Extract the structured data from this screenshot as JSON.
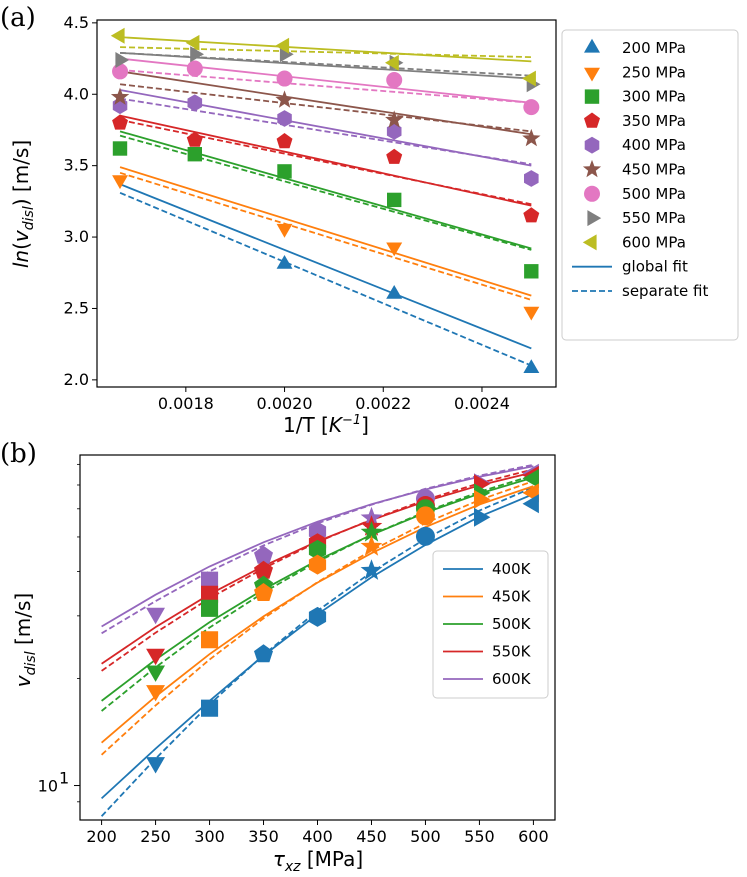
{
  "figure": {
    "panel_a": "(a)",
    "panel_b": "(b)"
  },
  "colors": {
    "blue": "#1f77b4",
    "orange": "#ff7f0e",
    "green": "#2ca02c",
    "red": "#d62728",
    "purple": "#9467bd",
    "brown": "#8c564b",
    "pink": "#e377c2",
    "gray": "#7f7f7f",
    "olive": "#bcbd22"
  },
  "chart_data": [
    {
      "type": "scatter",
      "panel": "(a)",
      "xlabel": "1/T [K⁻¹]",
      "ylabel": "ln(v_disl)  [m/s]",
      "xlim": [
        0.00162,
        0.00255
      ],
      "ylim": [
        1.95,
        4.52
      ],
      "xticks": [
        0.0018,
        0.002,
        0.0022,
        0.0024
      ],
      "xtick_labels": [
        "0.0018",
        "0.0020",
        "0.0022",
        "0.0024"
      ],
      "yticks": [
        2.0,
        2.5,
        3.0,
        3.5,
        4.0,
        4.5
      ],
      "ytick_labels": [
        "2.0",
        "2.5",
        "3.0",
        "3.5",
        "4.0",
        "4.5"
      ],
      "x": [
        0.0016667,
        0.0018182,
        0.002,
        0.0022222,
        0.0025
      ],
      "series": [
        {
          "name": "200 MPa",
          "color": "#1f77b4",
          "marker": "triangle-up",
          "points": [
            [
              0.002,
              2.81
            ],
            [
              0.0022222,
              2.6
            ],
            [
              0.0025,
              2.08
            ]
          ],
          "global_fit": [
            3.37,
            2.22
          ],
          "separate_fit": [
            3.31,
            2.1
          ]
        },
        {
          "name": "250 MPa",
          "color": "#ff7f0e",
          "marker": "triangle-down",
          "points": [
            [
              0.0016667,
              3.4
            ],
            [
              0.002,
              3.06
            ],
            [
              0.0022222,
              2.93
            ],
            [
              0.0025,
              2.48
            ]
          ],
          "global_fit": [
            3.49,
            2.59
          ],
          "separate_fit": [
            3.45,
            2.56
          ]
        },
        {
          "name": "300 MPa",
          "color": "#2ca02c",
          "marker": "square",
          "points": [
            [
              0.0016667,
              3.62
            ],
            [
              0.0018182,
              3.58
            ],
            [
              0.002,
              3.46
            ],
            [
              0.0022222,
              3.26
            ],
            [
              0.0025,
              2.76
            ]
          ],
          "global_fit": [
            3.74,
            2.92
          ],
          "separate_fit": [
            3.71,
            2.91
          ]
        },
        {
          "name": "350 MPa",
          "color": "#d62728",
          "marker": "pentagon",
          "points": [
            [
              0.0016667,
              3.8
            ],
            [
              0.0018182,
              3.68
            ],
            [
              0.002,
              3.67
            ],
            [
              0.0022222,
              3.56
            ],
            [
              0.0025,
              3.15
            ]
          ],
          "global_fit": [
            3.85,
            3.22
          ],
          "separate_fit": [
            3.82,
            3.23
          ]
        },
        {
          "name": "400 MPa",
          "color": "#9467bd",
          "marker": "hexagon",
          "points": [
            [
              0.0016667,
              3.92
            ],
            [
              0.0018182,
              3.94
            ],
            [
              0.002,
              3.83
            ],
            [
              0.0022222,
              3.74
            ],
            [
              0.0025,
              3.41
            ]
          ],
          "global_fit": [
            4.03,
            3.5
          ],
          "separate_fit": [
            3.97,
            3.51
          ]
        },
        {
          "name": "450 MPa",
          "color": "#8c564b",
          "marker": "star",
          "points": [
            [
              0.0016667,
              3.98
            ],
            [
              0.002,
              3.96
            ],
            [
              0.0022222,
              3.82
            ],
            [
              0.0025,
              3.69
            ]
          ],
          "global_fit": [
            4.16,
            3.72
          ],
          "separate_fit": [
            4.07,
            3.74
          ]
        },
        {
          "name": "500 MPa",
          "color": "#e377c2",
          "marker": "circle",
          "points": [
            [
              0.0016667,
              4.16
            ],
            [
              0.0018182,
              4.18
            ],
            [
              0.002,
              4.11
            ],
            [
              0.0022222,
              4.1
            ],
            [
              0.0025,
              3.91
            ]
          ],
          "global_fit": [
            4.25,
            3.94
          ],
          "separate_fit": [
            4.17,
            3.94
          ]
        },
        {
          "name": "550 MPa",
          "color": "#7f7f7f",
          "marker": "triangle-right",
          "points": [
            [
              0.0016667,
              4.24
            ],
            [
              0.0018182,
              4.28
            ],
            [
              0.002,
              4.28
            ],
            [
              0.0022222,
              4.22
            ],
            [
              0.0025,
              4.07
            ]
          ],
          "global_fit": [
            4.29,
            4.11
          ],
          "separate_fit": [
            4.29,
            4.13
          ]
        },
        {
          "name": "600 MPa",
          "color": "#bcbd22",
          "marker": "triangle-left",
          "points": [
            [
              0.0016667,
              4.41
            ],
            [
              0.0018182,
              4.36
            ],
            [
              0.002,
              4.34
            ],
            [
              0.0022222,
              4.22
            ],
            [
              0.0025,
              4.11
            ]
          ],
          "global_fit": [
            4.4,
            4.23
          ],
          "separate_fit": [
            4.33,
            4.26
          ]
        }
      ],
      "legend": {
        "position": "outside-right",
        "entries": [
          "200 MPa",
          "250 MPa",
          "300 MPa",
          "350 MPa",
          "400 MPa",
          "450 MPa",
          "500 MPa",
          "550 MPa",
          "600 MPa",
          "global fit",
          "separate fit"
        ],
        "fit_labels": {
          "global": "global fit",
          "separate": "separate fit"
        }
      }
    },
    {
      "type": "scatter",
      "panel": "(b)",
      "xlabel": "τ_xz [MPa]",
      "ylabel": "v_disl  [m/s]",
      "yscale": "log",
      "xlim": [
        180,
        620
      ],
      "ylim": [
        8.0,
        85
      ],
      "xticks": [
        200,
        250,
        300,
        350,
        400,
        450,
        500,
        550,
        600
      ],
      "xtick_labels": [
        "200",
        "250",
        "300",
        "350",
        "400",
        "450",
        "500",
        "550",
        "600"
      ],
      "ytick_major": {
        "value": 10,
        "base": "10",
        "exponent": "1"
      },
      "series": [
        {
          "name": "400K",
          "color": "#1f77b4",
          "points": [
            [
              250,
              11.6,
              "triangle-down"
            ],
            [
              300,
              16.5,
              "square"
            ],
            [
              350,
              23.4,
              "pentagon"
            ],
            [
              400,
              29.8,
              "hexagon"
            ],
            [
              450,
              40.2,
              "star"
            ],
            [
              500,
              50.2,
              "circle"
            ],
            [
              550,
              56.8,
              "triangle-right"
            ],
            [
              600,
              62.0,
              "triangle-left"
            ]
          ],
          "global_fit": [
            [
              200,
              9.2
            ],
            [
              250,
              12.7
            ],
            [
              300,
              17.3
            ],
            [
              350,
              23.2
            ],
            [
              400,
              30.3
            ],
            [
              450,
              38.5
            ],
            [
              500,
              47.5
            ],
            [
              550,
              57.0
            ],
            [
              600,
              66.0
            ]
          ],
          "separate_fit": [
            [
              200,
              8.2
            ],
            [
              250,
              11.9
            ],
            [
              300,
              16.9
            ],
            [
              350,
              23.3
            ],
            [
              400,
              31.0
            ],
            [
              450,
              39.8
            ],
            [
              500,
              49.4
            ],
            [
              550,
              59.3
            ],
            [
              600,
              69.0
            ]
          ]
        },
        {
          "name": "450K",
          "color": "#ff7f0e",
          "points": [
            [
              250,
              18.5,
              "triangle-down"
            ],
            [
              300,
              25.7,
              "square"
            ],
            [
              350,
              34.8,
              "pentagon"
            ],
            [
              400,
              41.8,
              "hexagon"
            ],
            [
              450,
              47.0,
              "star"
            ],
            [
              500,
              57.3,
              "circle"
            ],
            [
              550,
              63.8,
              "triangle-right"
            ],
            [
              600,
              66.5,
              "triangle-left"
            ]
          ],
          "global_fit": [
            [
              200,
              13.2
            ],
            [
              250,
              17.8
            ],
            [
              300,
              23.4
            ],
            [
              350,
              29.9
            ],
            [
              400,
              37.2
            ],
            [
              450,
              45.0
            ],
            [
              500,
              53.3
            ],
            [
              550,
              61.7
            ],
            [
              600,
              69.5
            ]
          ],
          "separate_fit": [
            [
              200,
              12.2
            ],
            [
              250,
              16.8
            ],
            [
              300,
              22.6
            ],
            [
              350,
              29.5
            ],
            [
              400,
              37.3
            ],
            [
              450,
              45.8
            ],
            [
              500,
              54.7
            ],
            [
              550,
              63.5
            ],
            [
              600,
              71.8
            ]
          ]
        },
        {
          "name": "500K",
          "color": "#2ca02c",
          "points": [
            [
              250,
              21.0,
              "triangle-down"
            ],
            [
              300,
              31.5,
              "square"
            ],
            [
              350,
              36.5,
              "pentagon"
            ],
            [
              400,
              46.0,
              "hexagon"
            ],
            [
              450,
              51.5,
              "star"
            ],
            [
              500,
              60.0,
              "circle"
            ],
            [
              550,
              66.5,
              "triangle-right"
            ],
            [
              600,
              73.0,
              "triangle-left"
            ]
          ],
          "global_fit": [
            [
              200,
              17.3
            ],
            [
              250,
              22.6
            ],
            [
              300,
              28.8
            ],
            [
              350,
              35.6
            ],
            [
              400,
              43.0
            ],
            [
              450,
              50.7
            ],
            [
              500,
              58.5
            ],
            [
              550,
              66.2
            ],
            [
              600,
              73.5
            ]
          ],
          "separate_fit": [
            [
              200,
              16.2
            ],
            [
              250,
              21.5
            ],
            [
              300,
              27.8
            ],
            [
              350,
              34.9
            ],
            [
              400,
              42.6
            ],
            [
              450,
              50.7
            ],
            [
              500,
              58.9
            ],
            [
              550,
              67.0
            ],
            [
              600,
              74.5
            ]
          ]
        },
        {
          "name": "550K",
          "color": "#d62728",
          "points": [
            [
              250,
              23.4,
              "triangle-down"
            ],
            [
              300,
              34.5,
              "square"
            ],
            [
              350,
              40.2,
              "pentagon"
            ],
            [
              400,
              48.0,
              "hexagon"
            ],
            [
              450,
              53.5,
              "star"
            ],
            [
              500,
              61.3,
              "circle"
            ],
            [
              550,
              70.5,
              "triangle-right"
            ],
            [
              600,
              74.5,
              "triangle-left"
            ]
          ],
          "global_fit": [
            [
              200,
              22.0
            ],
            [
              250,
              27.9
            ],
            [
              300,
              34.5
            ],
            [
              350,
              41.4
            ],
            [
              400,
              48.6
            ],
            [
              450,
              55.8
            ],
            [
              500,
              63.0
            ],
            [
              550,
              69.8
            ],
            [
              600,
              76.0
            ]
          ],
          "separate_fit": [
            [
              200,
              21.0
            ],
            [
              250,
              26.9
            ],
            [
              300,
              33.6
            ],
            [
              350,
              40.8
            ],
            [
              400,
              48.4
            ],
            [
              450,
              56.0
            ],
            [
              500,
              63.6
            ],
            [
              550,
              70.8
            ],
            [
              600,
              77.5
            ]
          ]
        },
        {
          "name": "600K",
          "color": "#9467bd",
          "points": [
            [
              250,
              30.5,
              "triangle-down"
            ],
            [
              300,
              37.8,
              "square"
            ],
            [
              350,
              44.3,
              "pentagon"
            ],
            [
              400,
              51.8,
              "hexagon"
            ],
            [
              450,
              56.5,
              "star"
            ],
            [
              500,
              64.0,
              "circle"
            ],
            [
              550,
              71.0,
              "triangle-right"
            ],
            [
              600,
              75.5,
              "triangle-left"
            ]
          ],
          "global_fit": [
            [
              200,
              28.0
            ],
            [
              250,
              34.4
            ],
            [
              300,
              41.3
            ],
            [
              350,
              48.3
            ],
            [
              400,
              55.2
            ],
            [
              450,
              61.8
            ],
            [
              500,
              68.0
            ],
            [
              550,
              73.8
            ],
            [
              600,
              79.0
            ]
          ],
          "separate_fit": [
            [
              200,
              26.8
            ],
            [
              250,
              33.0
            ],
            [
              300,
              40.0
            ],
            [
              350,
              47.3
            ],
            [
              400,
              54.6
            ],
            [
              450,
              61.6
            ],
            [
              500,
              68.3
            ],
            [
              550,
              74.4
            ],
            [
              600,
              79.8
            ]
          ]
        }
      ],
      "legend": {
        "position": "center-right",
        "entries": [
          "400K",
          "450K",
          "500K",
          "550K",
          "600K"
        ]
      }
    }
  ]
}
